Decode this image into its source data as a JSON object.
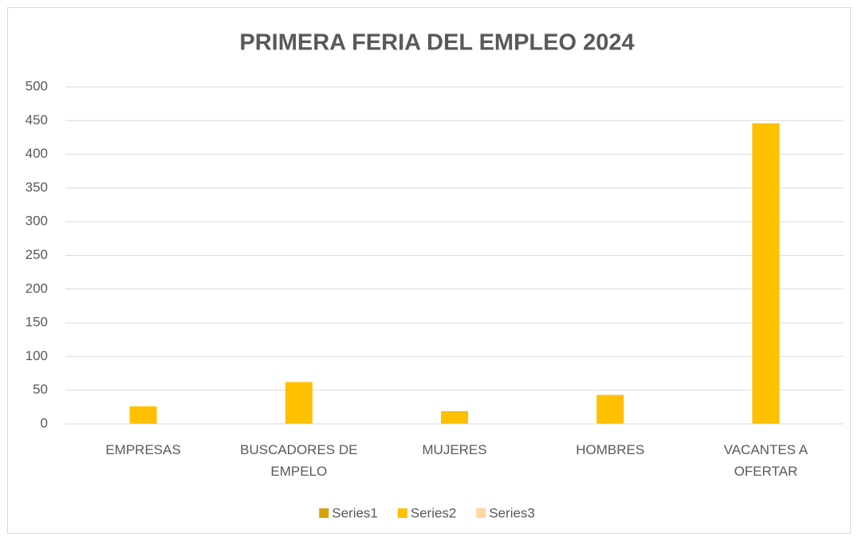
{
  "chart_data": {
    "type": "bar",
    "title": "PRIMERA FERIA DEL EMPLEO 2024",
    "categories": [
      "EMPRESAS",
      "BUSCADORES DE EMPELO",
      "MUJERES",
      "HOMBRES",
      "VACANTES A OFERTAR"
    ],
    "series": [
      {
        "name": "Series1",
        "color": "#d4a20c",
        "values": [
          null,
          null,
          null,
          null,
          null
        ]
      },
      {
        "name": "Series2",
        "color": "#ffc000",
        "values": [
          26,
          62,
          19,
          43,
          446
        ]
      },
      {
        "name": "Series3",
        "color": "#ffd7a0",
        "values": [
          null,
          null,
          null,
          null,
          null
        ]
      }
    ],
    "ylim": [
      0,
      500
    ],
    "yticks": [
      0,
      50,
      100,
      150,
      200,
      250,
      300,
      350,
      400,
      450,
      500
    ],
    "grid": true,
    "legend": "bottom"
  }
}
